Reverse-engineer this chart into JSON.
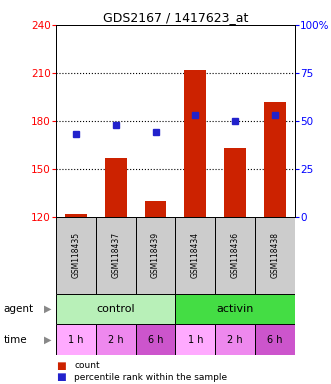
{
  "title": "GDS2167 / 1417623_at",
  "samples": [
    "GSM118435",
    "GSM118437",
    "GSM118439",
    "GSM118434",
    "GSM118436",
    "GSM118438"
  ],
  "bar_values": [
    122,
    157,
    130,
    212,
    163,
    192
  ],
  "bar_base": 120,
  "percentile_values": [
    43,
    48,
    44,
    53,
    50,
    53
  ],
  "left_ylim": [
    120,
    240
  ],
  "left_yticks": [
    120,
    150,
    180,
    210,
    240
  ],
  "right_ylim": [
    0,
    100
  ],
  "right_yticks": [
    0,
    25,
    50,
    75,
    100
  ],
  "right_yticklabels": [
    "0",
    "25",
    "50",
    "75",
    "100%"
  ],
  "bar_color": "#cc2200",
  "dot_color": "#2222cc",
  "hline_values": [
    150,
    180,
    210
  ],
  "agent_groups": [
    {
      "label": "control",
      "start": 0,
      "end": 3,
      "color": "#b8f0b8"
    },
    {
      "label": "activin",
      "start": 3,
      "end": 6,
      "color": "#44dd44"
    }
  ],
  "times": [
    "1 h",
    "2 h",
    "6 h",
    "1 h",
    "2 h",
    "6 h"
  ],
  "time_colors": [
    "#ffaaff",
    "#ee88ee",
    "#cc55cc",
    "#ffaaff",
    "#ee88ee",
    "#cc55cc"
  ],
  "legend_items": [
    {
      "label": "count",
      "color": "#cc2200"
    },
    {
      "label": "percentile rank within the sample",
      "color": "#2222cc"
    }
  ],
  "sample_box_color": "#cccccc",
  "fig_bg": "#ffffff",
  "left_tick_color": "red",
  "right_tick_color": "blue"
}
